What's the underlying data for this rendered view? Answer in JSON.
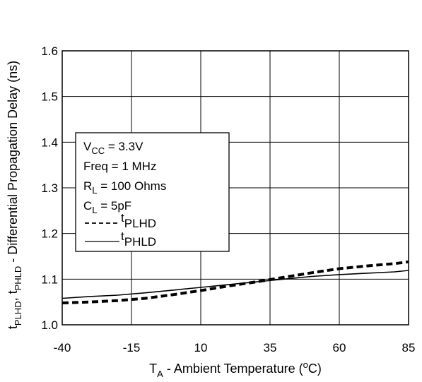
{
  "chart_data": {
    "type": "line",
    "xlabel": {
      "main": "T",
      "sub": "A",
      "rest": " - Ambient Temperature (",
      "sup": "o",
      "end": "C)"
    },
    "ylabel": {
      "t1": "t",
      "s1": "PLHD",
      "mid": ", t",
      "s2": "PHLD",
      "rest": " - Differential Propagation Delay (ns)"
    },
    "xlim": [
      -40,
      85
    ],
    "ylim": [
      1.0,
      1.6
    ],
    "x_ticks": [
      "-40",
      "-15",
      "10",
      "35",
      "60",
      "85"
    ],
    "y_ticks": [
      "1.0",
      "1.1",
      "1.2",
      "1.3",
      "1.4",
      "1.5",
      "1.6"
    ],
    "grid": true,
    "legend_position": "center-left",
    "conditions": [
      {
        "main": "V",
        "sub": "CC",
        "rest": " = 3.3V"
      },
      {
        "main": "Freq = 1 MHz",
        "sub": "",
        "rest": ""
      },
      {
        "main": "R",
        "sub": "L",
        "rest": "   = 100 Ohms"
      },
      {
        "main": "C",
        "sub": "L",
        "rest": "   =  5pF"
      }
    ],
    "series": [
      {
        "name": {
          "main": "t",
          "sub": "PLHD"
        },
        "style": "dashed",
        "x": [
          -40,
          -30,
          -20,
          -10,
          0,
          10,
          20,
          30,
          40,
          50,
          60,
          70,
          80,
          85
        ],
        "y": [
          1.048,
          1.05,
          1.053,
          1.058,
          1.066,
          1.075,
          1.085,
          1.094,
          1.104,
          1.114,
          1.123,
          1.129,
          1.134,
          1.138
        ]
      },
      {
        "name": {
          "main": "t",
          "sub": "PHLD"
        },
        "style": "solid",
        "x": [
          -40,
          -30,
          -20,
          -10,
          0,
          10,
          20,
          30,
          40,
          50,
          60,
          70,
          80,
          85
        ],
        "y": [
          1.058,
          1.062,
          1.065,
          1.07,
          1.076,
          1.082,
          1.088,
          1.094,
          1.1,
          1.106,
          1.11,
          1.113,
          1.116,
          1.119
        ]
      }
    ]
  }
}
